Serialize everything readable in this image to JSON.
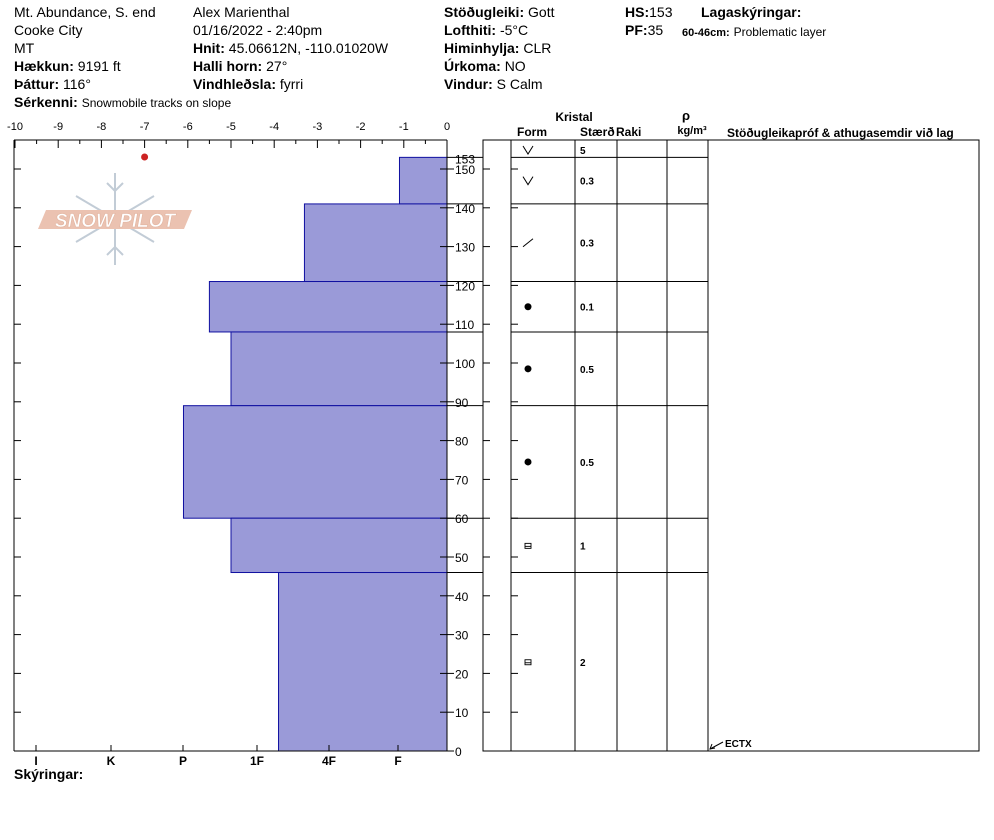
{
  "header": {
    "location": "Mt. Abundance, S. end",
    "city": "Cooke City",
    "state": "MT",
    "elevation_label": "Hækkun:",
    "elevation": "9191 ft",
    "aspect_label": "Þáttur:",
    "aspect": "116°",
    "features_label": "Sérkenni:",
    "features": "Snowmobile tracks on slope",
    "observer": "Alex Marienthal",
    "datetime": "01/16/2022 - 2:40pm",
    "coords_label": "Hnit:",
    "coords": "45.06612N, -110.01020W",
    "slope_label": "Halli horn:",
    "slope": "27°",
    "wind_loading_label": "Vindhleðsla:",
    "wind_loading": "fyrri",
    "stability_label": "Stöðugleiki:",
    "stability": "Gott",
    "air_temp_label": "Lofthiti:",
    "air_temp": "-5°C",
    "sky_label": "Himinhylja:",
    "sky": "CLR",
    "precip_label": "Úrkoma:",
    "precip": "NO",
    "wind_label": "Vindur:",
    "wind": "S Calm",
    "hs_label": "HS:",
    "hs": "153",
    "pf_label": "PF:",
    "pf": "35",
    "layer_notes_label": "Lagaskýringar:",
    "layer_note_range": "60-46cm:",
    "layer_note_text": "Problematic layer"
  },
  "table_headers": {
    "crystal": "Kristal",
    "form": "Form",
    "size": "Stærð",
    "moisture": "Raki",
    "density_symbol": "ρ",
    "density_unit": "kg/m³",
    "tests": "Stöðugleikapróf & athugasemdir við lag"
  },
  "legend_label": "Skýringar:",
  "watermark": "SNOW PILOT",
  "colors": {
    "hardness_fill": "#9a9ad8",
    "hardness_stroke": "#1010a0",
    "temp_point": "#cc2222"
  },
  "chart_data": {
    "type": "bar",
    "orientation": "horizontal-hardness-profile",
    "x_top_ticks": [
      "-10",
      "-9",
      "-8",
      "-7",
      "-6",
      "-5",
      "-4",
      "-3",
      "-2",
      "-1",
      "0"
    ],
    "x_top_range": [
      -10,
      0
    ],
    "hardness_ticks": [
      "I",
      "K",
      "P",
      "1F",
      "4F",
      "F"
    ],
    "y_ticks": [
      "0",
      "10",
      "20",
      "30",
      "40",
      "50",
      "60",
      "70",
      "80",
      "90",
      "100",
      "110",
      "120",
      "130",
      "140",
      "150"
    ],
    "y_top_label": "153",
    "y_range": [
      0,
      153
    ],
    "layers": [
      {
        "top": 153,
        "bottom": 141,
        "hardness_x": -1.1,
        "form": "precip",
        "size": "5"
      },
      {
        "top": 141,
        "bottom": 121,
        "hardness_x": -3.3,
        "form": "decomp",
        "size": "0.3"
      },
      {
        "top": 121,
        "bottom": 108,
        "hardness_x": -5.5,
        "form": "round",
        "size": "0.1"
      },
      {
        "top": 108,
        "bottom": 89,
        "hardness_x": -5.0,
        "form": "round",
        "size": "0.5"
      },
      {
        "top": 89,
        "bottom": 60,
        "hardness_x": -6.1,
        "form": "round",
        "size": "0.5"
      },
      {
        "top": 60,
        "bottom": 46,
        "hardness_x": -5.0,
        "form": "facet",
        "size": "1"
      },
      {
        "top": 46,
        "bottom": 0,
        "hardness_x": -3.9,
        "form": "facet",
        "size": "2"
      }
    ],
    "form_rows": [
      {
        "y": 153,
        "size": "5"
      },
      {
        "y": 147,
        "size": "0.3"
      },
      {
        "y": 131,
        "size": "0.3"
      },
      {
        "y": 114.5,
        "size": "0.1"
      },
      {
        "y": 98.5,
        "size": "0.5"
      },
      {
        "y": 74.5,
        "size": "0.5"
      },
      {
        "y": 53,
        "size": "1"
      },
      {
        "y": 23,
        "size": "2"
      }
    ],
    "temperature_points": [
      {
        "depth": 153,
        "temp": -7
      }
    ],
    "test_result": {
      "depth": 0,
      "label": "ECTX"
    }
  }
}
